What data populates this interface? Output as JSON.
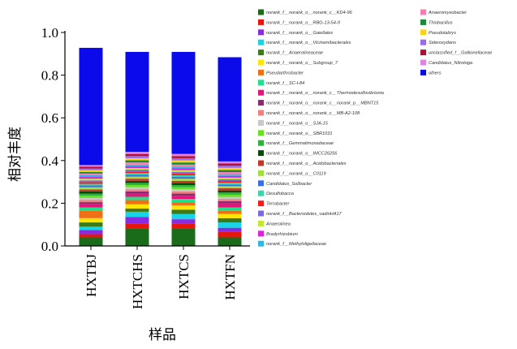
{
  "chart_data": {
    "type": "bar",
    "stacked": true,
    "title": "",
    "xlabel": "样品",
    "ylabel": "相对丰度",
    "ylim": [
      0.0,
      1.0
    ],
    "yticks": [
      "0.0",
      "0.2",
      "0.4",
      "0.6",
      "0.8",
      "1.0"
    ],
    "categories": [
      "HXTBJ",
      "HXTCHS",
      "HXTCS",
      "HXTFN"
    ],
    "legend_position": "right",
    "series": [
      {
        "name": "norank_f__norank_o__norank_c__KD4-96",
        "color": "#1a6b1a",
        "values": [
          0.04,
          0.08,
          0.08,
          0.04
        ]
      },
      {
        "name": "norank_f__norank_o__RBG-13-54-9",
        "color": "#e8150c",
        "values": [
          0.015,
          0.025,
          0.025,
          0.025
        ]
      },
      {
        "name": "norank_f__norank_o__Gaiellales",
        "color": "#8a2be2",
        "values": [
          0.02,
          0.03,
          0.02,
          0.02
        ]
      },
      {
        "name": "norank_f__norank_o__Vicinamibacterales",
        "color": "#17d4e6",
        "values": [
          0.015,
          0.025,
          0.025,
          0.025
        ]
      },
      {
        "name": "norank_f__Anaerolineaceae",
        "color": "#3a7a1a",
        "values": [
          0.02,
          0.015,
          0.02,
          0.02
        ]
      },
      {
        "name": "norank_f__norank_o__Subgroup_7",
        "color": "#ffe600",
        "values": [
          0.02,
          0.02,
          0.02,
          0.02
        ]
      },
      {
        "name": "Pseudarthrobacter",
        "color": "#f07016",
        "values": [
          0.035,
          0.02,
          0.015,
          0.015
        ]
      },
      {
        "name": "norank_f__SC-I-84",
        "color": "#22e08a",
        "values": [
          0.015,
          0.015,
          0.015,
          0.015
        ]
      },
      {
        "name": "norank_f__norank_o__norank_c__Thermodesulfovibrionia",
        "color": "#e6147a",
        "values": [
          0.015,
          0.015,
          0.015,
          0.02
        ]
      },
      {
        "name": "norank_f__norank_o__norank_c__norank_p__MBNT15",
        "color": "#8b2a6e",
        "values": [
          0.01,
          0.01,
          0.01,
          0.01
        ]
      },
      {
        "name": "norank_f__norank_o__norank_c__MB-A2-108",
        "color": "#f08080",
        "values": [
          0.01,
          0.01,
          0.01,
          0.01
        ]
      },
      {
        "name": "norank_f__norank_o__SJA-15",
        "color": "#c8c8c8",
        "values": [
          0.01,
          0.01,
          0.01,
          0.01
        ]
      },
      {
        "name": "norank_f__norank_o__SBR1031",
        "color": "#66e020",
        "values": [
          0.01,
          0.01,
          0.01,
          0.01
        ]
      },
      {
        "name": "norank_f__Gemmatimonadaceae",
        "color": "#2ab43c",
        "values": [
          0.01,
          0.01,
          0.01,
          0.01
        ]
      },
      {
        "name": "norank_f__norank_o__IMCC26256",
        "color": "#0a4a0a",
        "values": [
          0.01,
          0.01,
          0.01,
          0.01
        ]
      },
      {
        "name": "norank_f__norank_o__Acidobacteriales",
        "color": "#c0392b",
        "values": [
          0.01,
          0.01,
          0.01,
          0.01
        ]
      },
      {
        "name": "norank_f__norank_o__C0119",
        "color": "#a0e040",
        "values": [
          0.01,
          0.01,
          0.01,
          0.01
        ]
      },
      {
        "name": "Candidatus_Solibacter",
        "color": "#3a6ee8",
        "values": [
          0.008,
          0.008,
          0.008,
          0.008
        ]
      },
      {
        "name": "Desulfobacca",
        "color": "#3ad6a8",
        "values": [
          0.008,
          0.008,
          0.008,
          0.008
        ]
      },
      {
        "name": "Terrabacter",
        "color": "#ff1a1a",
        "values": [
          0.008,
          0.008,
          0.008,
          0.008
        ]
      },
      {
        "name": "norank_f__Bacteroidetes_vadinHA17",
        "color": "#7a6ae0",
        "values": [
          0.008,
          0.008,
          0.008,
          0.008
        ]
      },
      {
        "name": "Anaerolinea",
        "color": "#c0e830",
        "values": [
          0.008,
          0.008,
          0.008,
          0.008
        ]
      },
      {
        "name": "Bradyrhizobium",
        "color": "#e020e0",
        "values": [
          0.008,
          0.008,
          0.008,
          0.008
        ]
      },
      {
        "name": "norank_f__Methyloligellaceae",
        "color": "#2ab8e8",
        "values": [
          0.008,
          0.008,
          0.008,
          0.008
        ]
      },
      {
        "name": "Anaeromyxobacter",
        "color": "#ff7ab0",
        "values": [
          0.008,
          0.01,
          0.01,
          0.01
        ]
      },
      {
        "name": "Thiobacillus",
        "color": "#1a8a3a",
        "values": [
          0.008,
          0.01,
          0.01,
          0.01
        ]
      },
      {
        "name": "Pseudolabrys",
        "color": "#ffd21a",
        "values": [
          0.008,
          0.01,
          0.01,
          0.01
        ]
      },
      {
        "name": "Sideroxydans",
        "color": "#9a6af0",
        "values": [
          0.008,
          0.01,
          0.01,
          0.01
        ]
      },
      {
        "name": "unclassified_f__Gallionellaceae",
        "color": "#b01030",
        "values": [
          0.008,
          0.01,
          0.01,
          0.01
        ]
      },
      {
        "name": "Candidatus_Nitrotoga",
        "color": "#e680e6",
        "values": [
          0.008,
          0.01,
          0.01,
          0.01
        ]
      },
      {
        "name": "others",
        "color": "#0a0aeb",
        "values": [
          0.549,
          0.468,
          0.478,
          0.488
        ]
      }
    ]
  }
}
